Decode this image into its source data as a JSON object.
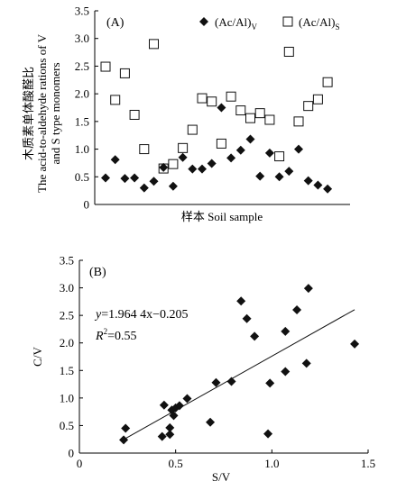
{
  "chart_data": [
    {
      "type": "scatter",
      "panel_label": "(A)",
      "xlabel": "样本 Soil sample",
      "ylabel_lines": [
        "木质素单体酸醛比",
        "The acid-to-aldehyde rations of V",
        "and S type monomers"
      ],
      "ylim": [
        0,
        3.5
      ],
      "yticks": [
        "0",
        "0.5",
        "1.0",
        "1.5",
        "2.0",
        "2.5",
        "3.0",
        "3.5"
      ],
      "legend": {
        "placement": "top-right"
      },
      "series": [
        {
          "name": "(Ac/Al)V",
          "name_main": "(Ac/Al)",
          "name_sub": "V",
          "marker": "filled-diamond",
          "x": [
            1,
            2,
            3,
            4,
            5,
            6,
            7,
            8,
            9,
            10,
            11,
            12,
            13,
            14,
            15,
            16,
            17,
            18,
            19,
            20,
            21,
            22,
            23,
            24
          ],
          "values": [
            0.48,
            0.81,
            0.47,
            0.48,
            0.3,
            0.42,
            0.67,
            0.33,
            0.85,
            0.64,
            0.64,
            0.74,
            1.75,
            0.84,
            0.98,
            1.18,
            0.51,
            0.93,
            0.5,
            0.6,
            1.0,
            0.43,
            0.35,
            0.28
          ]
        },
        {
          "name": "(Ac/Al)S",
          "name_main": "(Ac/Al)",
          "name_sub": "S",
          "marker": "open-square",
          "x": [
            1,
            2,
            3,
            4,
            5,
            6,
            7,
            8,
            9,
            10,
            11,
            12,
            13,
            14,
            15,
            16,
            17,
            18,
            19,
            20,
            21,
            22,
            23,
            24
          ],
          "values": [
            2.49,
            1.89,
            2.37,
            1.62,
            1.0,
            2.9,
            0.65,
            0.73,
            1.02,
            1.35,
            1.92,
            1.86,
            1.1,
            1.95,
            1.7,
            1.56,
            1.65,
            1.53,
            0.87,
            2.76,
            1.5,
            1.78,
            1.9,
            2.21
          ]
        }
      ]
    },
    {
      "type": "scatter",
      "panel_label": "(B)",
      "xlabel": "S/V",
      "ylabel": "C/V",
      "xlim": [
        0,
        1.5
      ],
      "ylim": [
        0,
        3.5
      ],
      "xticks": [
        "0",
        "0.5",
        "1.0",
        "1.5"
      ],
      "yticks": [
        "0",
        "0.5",
        "1.0",
        "1.5",
        "2.0",
        "2.5",
        "3.0",
        "3.5"
      ],
      "equation_y": "y",
      "equation_rest": "=1.964 4x−0.205",
      "r2_label": "R",
      "r2_sup": "2",
      "r2_value": "=0.55",
      "fit": {
        "slope": 1.9644,
        "intercept": -0.205,
        "x_range": [
          0.23,
          1.43
        ]
      },
      "series": [
        {
          "marker": "filled-diamond",
          "x": [
            0.23,
            0.24,
            0.43,
            0.44,
            0.47,
            0.47,
            0.48,
            0.49,
            0.5,
            0.52,
            0.56,
            0.68,
            0.71,
            0.79,
            0.84,
            0.87,
            0.91,
            0.98,
            0.99,
            1.07,
            1.07,
            1.13,
            1.18,
            1.19,
            1.43
          ],
          "y": [
            0.24,
            0.45,
            0.3,
            0.87,
            0.34,
            0.46,
            0.78,
            0.68,
            0.82,
            0.86,
            0.99,
            0.56,
            1.28,
            1.3,
            2.76,
            2.44,
            2.12,
            0.35,
            1.27,
            1.48,
            2.21,
            2.6,
            1.63,
            2.99,
            1.98
          ]
        }
      ]
    }
  ]
}
